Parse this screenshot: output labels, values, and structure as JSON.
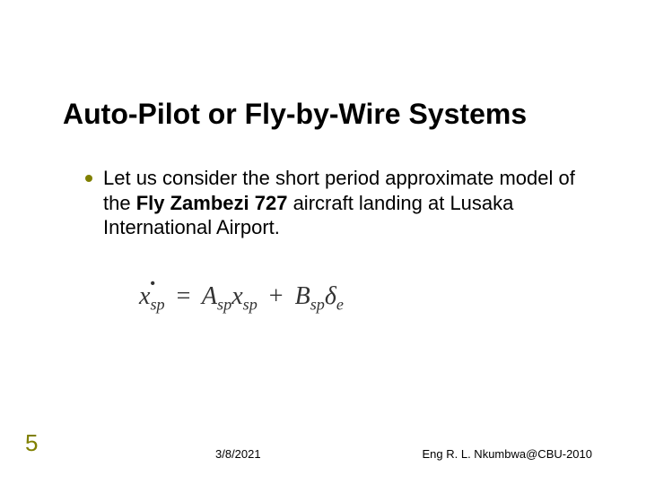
{
  "slide": {
    "title": "Auto-Pilot or Fly-by-Wire Systems",
    "bullet_text_pre": "Let us consider the short period approximate model of the ",
    "bullet_bold": "Fly Zambezi 727",
    "bullet_text_post": " aircraft landing at Lusaka International Airport.",
    "equation": {
      "lhs_var": "x",
      "lhs_sub": "sp",
      "A_var": "A",
      "A_sub": "sp",
      "x2_var": "x",
      "x2_sub": "sp",
      "B_var": "B",
      "B_sub": "sp",
      "delta_var": "δ",
      "delta_sub": "e",
      "text_color": "#333333",
      "fontsize": 28
    },
    "page_number": "5",
    "footer_date": "3/8/2021",
    "footer_author": "Eng R. L. Nkumbwa@CBU-2010"
  },
  "style": {
    "title_fontsize": 32,
    "body_fontsize": 22,
    "pagenum_fontsize": 26,
    "footer_fontsize": 13,
    "bullet_color": "#808000",
    "pagenum_color": "#808000",
    "background_color": "#ffffff",
    "text_color": "#000000"
  }
}
